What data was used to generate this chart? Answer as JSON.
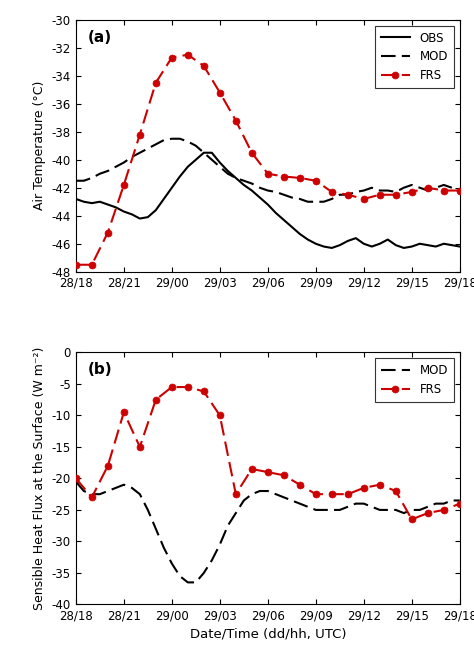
{
  "title_a": "(a)",
  "title_b": "(b)",
  "xlabel": "Date/Time (dd/hh, UTC)",
  "ylabel_a": "Air Temperature (°C)",
  "ylabel_b": "Sensible Heat Flux at the Surface (W m⁻²)",
  "x_ticks_labels": [
    "28/18",
    "28/21",
    "29/00",
    "29/03",
    "29/06",
    "29/09",
    "29/12",
    "29/15",
    "29/18"
  ],
  "x_values": [
    0,
    3,
    6,
    9,
    12,
    15,
    18,
    21,
    24
  ],
  "obs_x": [
    0,
    0.5,
    1,
    1.5,
    2,
    2.5,
    3,
    3.5,
    4,
    4.5,
    5,
    5.5,
    6,
    6.5,
    7,
    7.5,
    8,
    8.5,
    9,
    9.5,
    10,
    10.5,
    11,
    11.5,
    12,
    12.5,
    13,
    13.5,
    14,
    14.5,
    15,
    15.5,
    16,
    16.5,
    17,
    17.5,
    18,
    18.5,
    19,
    19.5,
    20,
    20.5,
    21,
    21.5,
    22,
    22.5,
    23,
    23.5,
    24
  ],
  "obs_y": [
    -42.8,
    -43.0,
    -43.1,
    -43.0,
    -43.2,
    -43.4,
    -43.7,
    -43.9,
    -44.2,
    -44.1,
    -43.6,
    -42.8,
    -42.0,
    -41.2,
    -40.5,
    -40.0,
    -39.5,
    -39.5,
    -40.2,
    -40.8,
    -41.3,
    -41.8,
    -42.2,
    -42.7,
    -43.2,
    -43.8,
    -44.3,
    -44.8,
    -45.3,
    -45.7,
    -46.0,
    -46.2,
    -46.3,
    -46.1,
    -45.8,
    -45.6,
    -46.0,
    -46.2,
    -46.0,
    -45.7,
    -46.1,
    -46.3,
    -46.2,
    -46.0,
    -46.1,
    -46.2,
    -46.0,
    -46.1,
    -46.2
  ],
  "mod_x": [
    0,
    0.5,
    1,
    1.5,
    2,
    2.5,
    3,
    3.5,
    4,
    4.5,
    5,
    5.5,
    6,
    6.5,
    7,
    7.5,
    8,
    8.5,
    9,
    9.5,
    10,
    10.5,
    11,
    11.5,
    12,
    12.5,
    13,
    13.5,
    14,
    14.5,
    15,
    15.5,
    16,
    16.5,
    17,
    17.5,
    18,
    18.5,
    19,
    19.5,
    20,
    20.5,
    21,
    21.5,
    22,
    22.5,
    23,
    23.5,
    24
  ],
  "mod_y": [
    -41.5,
    -41.5,
    -41.3,
    -41.0,
    -40.8,
    -40.5,
    -40.2,
    -39.8,
    -39.5,
    -39.2,
    -38.9,
    -38.6,
    -38.5,
    -38.5,
    -38.7,
    -39.0,
    -39.5,
    -40.0,
    -40.5,
    -41.0,
    -41.3,
    -41.5,
    -41.7,
    -42.0,
    -42.2,
    -42.3,
    -42.5,
    -42.7,
    -42.8,
    -43.0,
    -43.0,
    -43.0,
    -42.8,
    -42.5,
    -42.5,
    -42.3,
    -42.2,
    -42.0,
    -42.2,
    -42.2,
    -42.3,
    -42.0,
    -41.8,
    -42.0,
    -42.2,
    -42.0,
    -41.8,
    -42.0,
    -42.2
  ],
  "frs_x": [
    0,
    1,
    2,
    3,
    4,
    5,
    6,
    7,
    8,
    9,
    10,
    11,
    12,
    13,
    14,
    15,
    16,
    17,
    18,
    19,
    20,
    21,
    22,
    23,
    24
  ],
  "frs_a_y": [
    -47.5,
    -47.5,
    -45.2,
    -41.8,
    -38.2,
    -34.5,
    -32.7,
    -32.5,
    -33.3,
    -35.2,
    -37.2,
    -39.5,
    -41.0,
    -41.2,
    -41.3,
    -41.5,
    -42.3,
    -42.5,
    -42.8,
    -42.5,
    -42.5,
    -42.3,
    -42.0,
    -42.2,
    -42.2
  ],
  "mod_b_x": [
    0,
    0.5,
    1,
    1.5,
    2,
    2.5,
    3,
    3.5,
    4,
    4.5,
    5,
    5.5,
    6,
    6.5,
    7,
    7.5,
    8,
    8.5,
    9,
    9.5,
    10,
    10.5,
    11,
    11.5,
    12,
    12.5,
    13,
    13.5,
    14,
    14.5,
    15,
    15.5,
    16,
    16.5,
    17,
    17.5,
    18,
    18.5,
    19,
    19.5,
    20,
    20.5,
    21,
    21.5,
    22,
    22.5,
    23,
    23.5,
    24
  ],
  "mod_b_y": [
    -20.5,
    -22.0,
    -22.5,
    -22.5,
    -22.0,
    -21.5,
    -21.0,
    -21.5,
    -22.5,
    -25.0,
    -28.0,
    -31.0,
    -33.5,
    -35.5,
    -36.5,
    -36.5,
    -35.0,
    -33.0,
    -30.5,
    -27.5,
    -25.5,
    -23.5,
    -22.5,
    -22.0,
    -22.0,
    -22.5,
    -23.0,
    -23.5,
    -24.0,
    -24.5,
    -25.0,
    -25.0,
    -25.0,
    -25.0,
    -24.5,
    -24.0,
    -24.0,
    -24.5,
    -25.0,
    -25.0,
    -25.0,
    -25.5,
    -25.0,
    -25.0,
    -24.5,
    -24.0,
    -24.0,
    -23.5,
    -23.5
  ],
  "frs_b_x": [
    0,
    1,
    2,
    3,
    4,
    5,
    6,
    7,
    8,
    9,
    10,
    11,
    12,
    13,
    14,
    15,
    16,
    17,
    18,
    19,
    20,
    21,
    22,
    23,
    24
  ],
  "frs_b_y": [
    -20.0,
    -23.0,
    -18.0,
    -9.5,
    -15.0,
    -7.5,
    -5.5,
    -5.5,
    -6.2,
    -10.0,
    -22.5,
    -18.5,
    -19.0,
    -19.5,
    -21.0,
    -22.5,
    -22.5,
    -22.5,
    -21.5,
    -21.0,
    -22.0,
    -26.5,
    -25.5,
    -25.0,
    -24.0
  ],
  "ylim_a": [
    -48,
    -30
  ],
  "yticks_a": [
    -48,
    -46,
    -44,
    -42,
    -40,
    -38,
    -36,
    -34,
    -32,
    -30
  ],
  "ylim_b": [
    -40,
    0
  ],
  "yticks_b": [
    -40,
    -35,
    -30,
    -25,
    -20,
    -15,
    -10,
    -5,
    0
  ],
  "color_obs": "#000000",
  "color_mod": "#000000",
  "color_frs": "#cc0000",
  "linewidth": 1.5,
  "marker_size": 5
}
